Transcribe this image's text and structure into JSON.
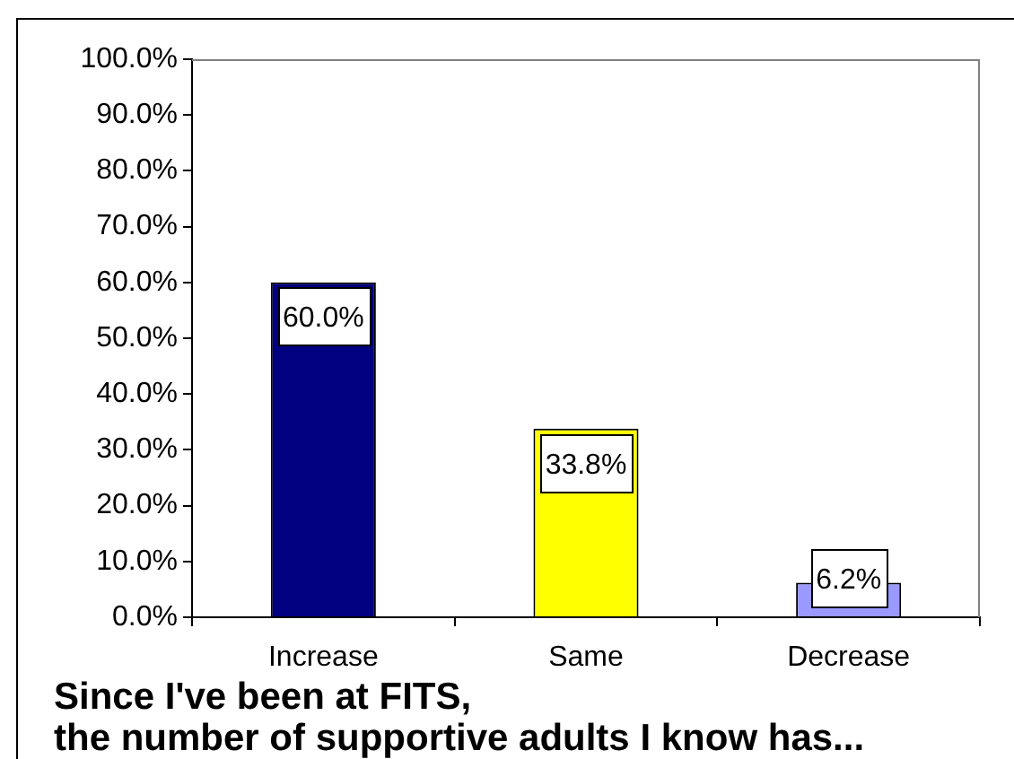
{
  "chart_data": {
    "type": "bar",
    "title": "Since I've been at FITS,\nthe number of supportive adults I know has...",
    "categories": [
      "Increase",
      "Same",
      "Decrease"
    ],
    "values": [
      60.0,
      33.8,
      6.2
    ],
    "colors": [
      "#000080",
      "#ffff00",
      "#9999ff"
    ],
    "value_labels": [
      "60.0%",
      "33.8%",
      "6.2%"
    ],
    "ylim": [
      0,
      100
    ],
    "yticks": [
      {
        "value": 0,
        "label": "0.0%"
      },
      {
        "value": 10,
        "label": "10.0%"
      },
      {
        "value": 20,
        "label": "20.0%"
      },
      {
        "value": 30,
        "label": "30.0%"
      },
      {
        "value": 40,
        "label": "40.0%"
      },
      {
        "value": 50,
        "label": "50.0%"
      },
      {
        "value": 60,
        "label": "60.0%"
      },
      {
        "value": 70,
        "label": "70.0%"
      },
      {
        "value": 80,
        "label": "80.0%"
      },
      {
        "value": 90,
        "label": "90.0%"
      },
      {
        "value": 100,
        "label": "100.0%"
      }
    ]
  }
}
